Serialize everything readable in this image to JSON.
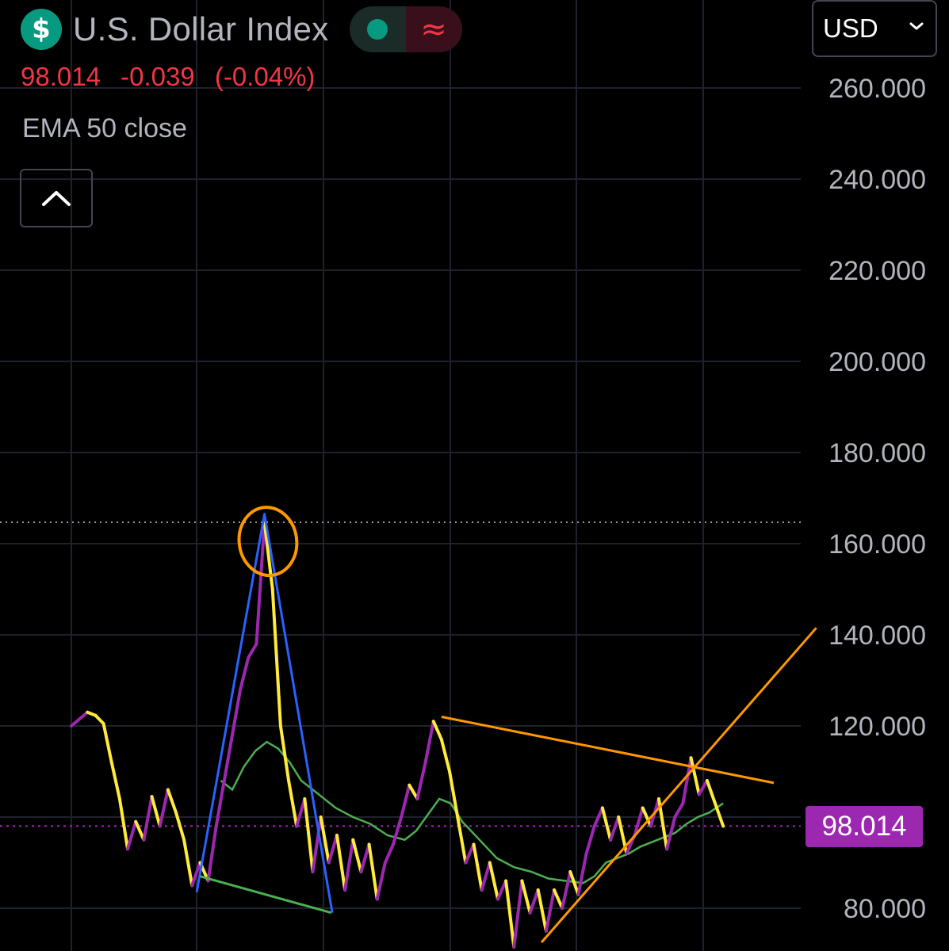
{
  "header": {
    "symbol_icon": "dollar-sign-icon",
    "symbol_glyph": "$",
    "title": "U.S. Dollar Index",
    "status_left_icon": "market-open-dot-icon",
    "status_right_icon": "approx-icon",
    "status_right_glyph": "≈",
    "quote": {
      "last": "98.014",
      "change": "-0.039",
      "change_pct": "(-0.04%)"
    },
    "indicator": "EMA 50 close",
    "collapse_icon": "chevron-up-icon"
  },
  "currency": {
    "value": "USD",
    "icon": "chevron-down-icon"
  },
  "colors": {
    "background": "#000000",
    "grid": "#1e222d",
    "price_up": "#9c27b0",
    "price_down": "#ffeb3b",
    "ema": "#4caf50",
    "drawing_blue": "#2962ff",
    "drawing_orange": "#ff9800",
    "drawing_green": "#4caf50",
    "current_price_line": "#9c27b0",
    "negative": "#f23645",
    "accent_teal": "#089981"
  },
  "chart_data": {
    "type": "line",
    "title": "U.S. Dollar Index",
    "series_style": "price line colored by direction (purple up, yellow down) with EMA 50 overlay",
    "y_ticks": [
      "260.000",
      "240.000",
      "220.000",
      "200.000",
      "180.000",
      "160.000",
      "140.000",
      "120.000",
      "80.000"
    ],
    "y_tick_values": [
      260,
      240,
      220,
      200,
      180,
      160,
      140,
      120,
      80
    ],
    "ylim": [
      71.3,
      281.3
    ],
    "current_price": 98.014,
    "current_price_label": "98.014",
    "horizontal_ref_level": 164.7,
    "series": [
      {
        "name": "U.S. Dollar Index",
        "points": [
          [
            0.0,
            120.0
          ],
          [
            0.7,
            121.5
          ],
          [
            1.4,
            123.0
          ],
          [
            2.1,
            122.3
          ],
          [
            2.8,
            120.5
          ],
          [
            3.5,
            112.0
          ],
          [
            4.2,
            104.0
          ],
          [
            4.9,
            93.0
          ],
          [
            5.6,
            99.0
          ],
          [
            6.3,
            95.0
          ],
          [
            7.0,
            104.5
          ],
          [
            7.7,
            98.0
          ],
          [
            8.4,
            106.0
          ],
          [
            9.1,
            101.0
          ],
          [
            9.8,
            95.0
          ],
          [
            10.5,
            85.0
          ],
          [
            11.2,
            90.0
          ],
          [
            11.9,
            86.0
          ],
          [
            12.6,
            98.0
          ],
          [
            13.3,
            108.0
          ],
          [
            14.0,
            118.0
          ],
          [
            14.7,
            128.0
          ],
          [
            15.4,
            135.0
          ],
          [
            16.1,
            138.0
          ],
          [
            16.8,
            164.7
          ],
          [
            17.5,
            150.0
          ],
          [
            18.2,
            120.0
          ],
          [
            18.9,
            108.0
          ],
          [
            19.6,
            98.0
          ],
          [
            20.3,
            104.0
          ],
          [
            21.0,
            88.0
          ],
          [
            21.7,
            100.0
          ],
          [
            22.4,
            90.0
          ],
          [
            23.1,
            96.0
          ],
          [
            23.8,
            84.0
          ],
          [
            24.5,
            95.0
          ],
          [
            25.2,
            88.0
          ],
          [
            25.9,
            94.0
          ],
          [
            26.6,
            82.0
          ],
          [
            27.3,
            90.0
          ],
          [
            28.0,
            94.0
          ],
          [
            28.7,
            100.0
          ],
          [
            29.4,
            107.0
          ],
          [
            30.1,
            104.0
          ],
          [
            30.8,
            112.0
          ],
          [
            31.5,
            121.0
          ],
          [
            32.2,
            117.0
          ],
          [
            32.9,
            110.0
          ],
          [
            33.6,
            100.0
          ],
          [
            34.3,
            90.0
          ],
          [
            35.0,
            94.0
          ],
          [
            35.7,
            84.0
          ],
          [
            36.4,
            90.0
          ],
          [
            37.1,
            82.0
          ],
          [
            37.8,
            86.0
          ],
          [
            38.5,
            71.5
          ],
          [
            39.2,
            86.0
          ],
          [
            39.9,
            79.0
          ],
          [
            40.6,
            84.0
          ],
          [
            41.3,
            75.0
          ],
          [
            42.0,
            84.0
          ],
          [
            42.7,
            80.0
          ],
          [
            43.4,
            88.0
          ],
          [
            44.1,
            83.0
          ],
          [
            44.8,
            92.0
          ],
          [
            45.5,
            98.0
          ],
          [
            46.2,
            102.0
          ],
          [
            46.9,
            95.0
          ],
          [
            47.6,
            100.0
          ],
          [
            48.3,
            92.0
          ],
          [
            49.0,
            96.0
          ],
          [
            49.7,
            102.0
          ],
          [
            50.4,
            98.0
          ],
          [
            51.1,
            104.0
          ],
          [
            51.8,
            93.0
          ],
          [
            52.5,
            100.0
          ],
          [
            53.2,
            103.0
          ],
          [
            53.9,
            113.0
          ],
          [
            54.6,
            105.0
          ],
          [
            55.3,
            108.0
          ],
          [
            56.0,
            103.0
          ],
          [
            56.7,
            98.0
          ]
        ]
      },
      {
        "name": "EMA 50 close",
        "points": [
          [
            13.0,
            108.0
          ],
          [
            14.0,
            106.0
          ],
          [
            15.0,
            111.0
          ],
          [
            16.0,
            114.5
          ],
          [
            17.0,
            116.5
          ],
          [
            18.0,
            115.0
          ],
          [
            19.0,
            112.0
          ],
          [
            20.0,
            108.0
          ],
          [
            21.5,
            105.0
          ],
          [
            23.0,
            102.0
          ],
          [
            24.5,
            100.0
          ],
          [
            26.0,
            98.5
          ],
          [
            27.5,
            96.0
          ],
          [
            29.0,
            95.0
          ],
          [
            30.0,
            97.0
          ],
          [
            31.0,
            100.5
          ],
          [
            32.0,
            104.0
          ],
          [
            33.0,
            103.0
          ],
          [
            34.0,
            99.0
          ],
          [
            35.5,
            95.0
          ],
          [
            37.0,
            91.0
          ],
          [
            38.5,
            89.0
          ],
          [
            40.0,
            88.0
          ],
          [
            41.5,
            86.5
          ],
          [
            43.0,
            86.0
          ],
          [
            44.5,
            85.5
          ],
          [
            45.5,
            87.0
          ],
          [
            46.5,
            90.0
          ],
          [
            47.5,
            91.0
          ],
          [
            48.5,
            92.0
          ],
          [
            49.5,
            93.5
          ],
          [
            50.5,
            94.5
          ],
          [
            51.5,
            95.5
          ],
          [
            52.5,
            96.5
          ],
          [
            53.5,
            98.5
          ],
          [
            54.5,
            100.0
          ],
          [
            55.5,
            101.0
          ],
          [
            56.7,
            103.0
          ]
        ]
      }
    ],
    "annotations": [
      {
        "type": "line",
        "color": "blue",
        "points": [
          [
            10.9,
            83.5
          ],
          [
            16.8,
            166.5
          ],
          [
            22.7,
            79.0
          ]
        ]
      },
      {
        "type": "line",
        "color": "green",
        "points": [
          [
            11.2,
            87.0
          ],
          [
            22.6,
            79.0
          ]
        ]
      },
      {
        "type": "ellipse",
        "color": "orange",
        "center": [
          17.1,
          160.5
        ],
        "rx": 2.5,
        "ry": 7.5
      },
      {
        "type": "line",
        "color": "orange",
        "points": [
          [
            32.2,
            122.0
          ],
          [
            61.1,
            107.5
          ]
        ]
      },
      {
        "type": "line",
        "color": "orange",
        "points": [
          [
            40.9,
            72.5
          ],
          [
            64.8,
            141.5
          ]
        ]
      }
    ]
  }
}
